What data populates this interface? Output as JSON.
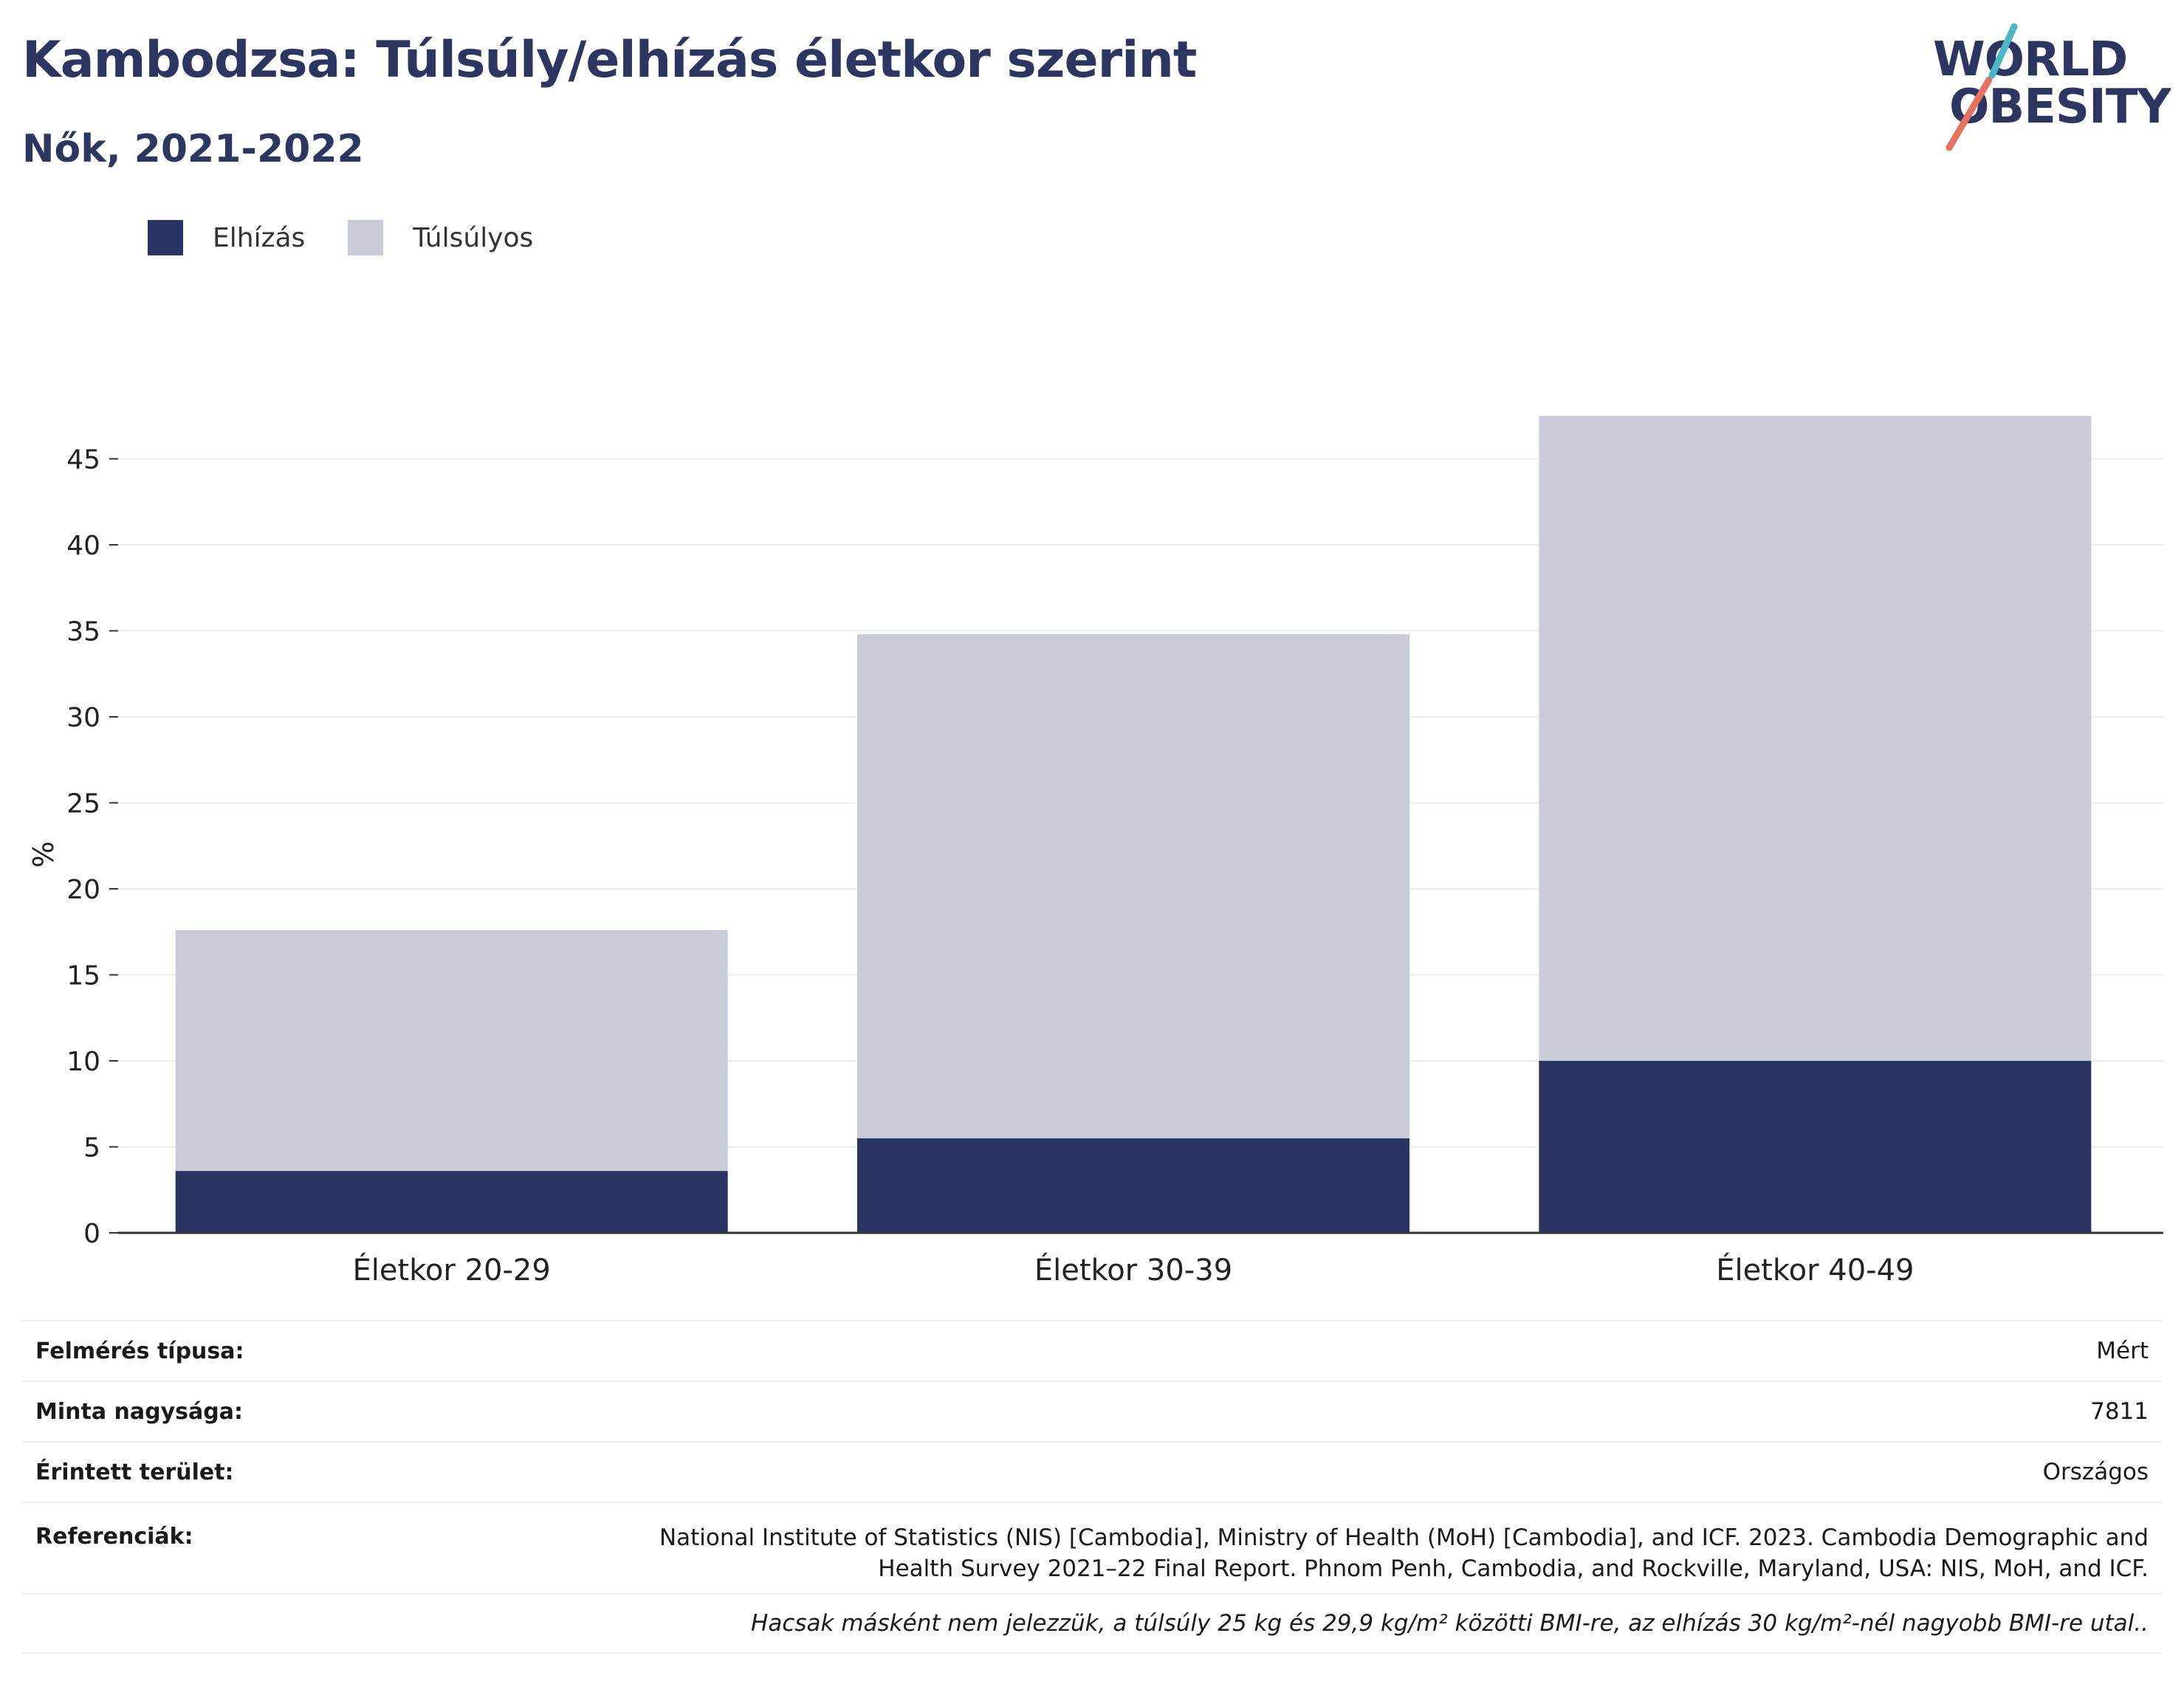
{
  "header": {
    "title": "Kambodzsa: Túlsúly/elhízás életkor szerint",
    "subtitle": "Nők, 2021-2022"
  },
  "logo": {
    "line1": "WORLD",
    "line2": "OBESITY",
    "text_color": "#2d3561",
    "stripe_colors": [
      "#e5715f",
      "#4db8c4"
    ]
  },
  "legend": [
    {
      "label": "Elhízás",
      "color": "#2b3563"
    },
    {
      "label": "Túlsúlyos",
      "color": "#c9cbd6"
    }
  ],
  "chart_data": {
    "type": "bar",
    "stacked": true,
    "categories": [
      "Életkor 20-29",
      "Életkor 30-39",
      "Életkor 40-49"
    ],
    "series": [
      {
        "name": "Elhízás",
        "values": [
          3.6,
          5.5,
          10.0
        ],
        "color": "#2b3563"
      },
      {
        "name": "Túlsúlyos",
        "values": [
          14.0,
          29.3,
          37.5
        ],
        "color": "#c9cbd6"
      }
    ],
    "ylabel": "%",
    "xlabel": "",
    "ylim": [
      0,
      48
    ],
    "yticks": [
      0,
      5,
      10,
      15,
      20,
      25,
      30,
      35,
      40,
      45
    ],
    "grid": true,
    "legend_position": "top-left"
  },
  "info": {
    "survey_type": {
      "label": "Felmérés típusa:",
      "value": "Mért"
    },
    "sample_size": {
      "label": "Minta nagysága:",
      "value": "7811"
    },
    "area": {
      "label": "Érintett terület:",
      "value": "Országos"
    },
    "references": {
      "label": "Referenciák:",
      "value_line1": "National Institute of Statistics (NIS) [Cambodia], Ministry of Health (MoH) [Cambodia], and ICF. 2023. Cambodia Demographic and",
      "value_line2": "Health Survey 2021–22 Final Report. Phnom Penh, Cambodia, and Rockville, Maryland, USA: NIS, MoH, and ICF."
    },
    "note": "Hacsak másként nem jelezzük, a túlsúly 25 kg és 29,9 kg/m² közötti BMI-re, az elhízás 30 kg/m²-nél nagyobb BMI-re utal.."
  }
}
